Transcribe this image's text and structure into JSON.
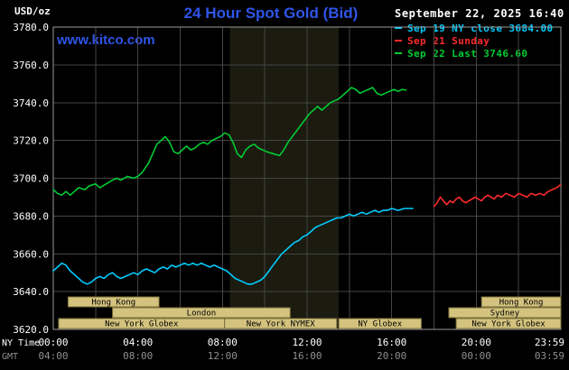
{
  "header": {
    "units": "USD/oz",
    "title": "24 Hour Spot Gold (Bid)",
    "datetime": "September 22, 2025 16:40",
    "watermark": "www.kitco.com"
  },
  "x_axis_names": {
    "ny": "NY Time",
    "gmt": "GMT"
  },
  "colors": {
    "background": "#000000",
    "text": "#ffffff",
    "gmt_text": "#8f8f8f",
    "title": "#2f55e8",
    "watermark": "#2f55e8",
    "grid": "#454545",
    "plot_border": "#9a9a9a",
    "band": "#1b1b10",
    "session_fill": "#d4c37e",
    "session_border": "#7a6f3a",
    "session_text": "#000000"
  },
  "chart_data": {
    "type": "line",
    "title": "24 Hour Spot Gold (Bid)",
    "ylabel": "USD/oz",
    "ylim": [
      3620,
      3780
    ],
    "xlim_hours": [
      0,
      24
    ],
    "grid": {
      "x_step_hours": 2,
      "y_step": 20,
      "on": true
    },
    "legend_position": "top-right",
    "band": {
      "name": "nymex-floor-hours",
      "start_hour": 8.35,
      "end_hour": 13.5
    },
    "y_axis": {
      "ticks": [
        {
          "value": 3780,
          "label": "3780.0"
        },
        {
          "value": 3760,
          "label": "3760.0"
        },
        {
          "value": 3740,
          "label": "3740.0"
        },
        {
          "value": 3720,
          "label": "3720.0"
        },
        {
          "value": 3700,
          "label": "3700.0"
        },
        {
          "value": 3680,
          "label": "3680.0"
        },
        {
          "value": 3660,
          "label": "3660.0"
        },
        {
          "value": 3640,
          "label": "3640.0"
        },
        {
          "value": 3620,
          "label": "3620.0"
        }
      ]
    },
    "x_axis": {
      "hours": [
        0,
        4,
        8,
        12,
        16,
        20,
        24
      ],
      "ny_labels": [
        "00:00",
        "04:00",
        "08:00",
        "12:00",
        "16:00",
        "20:00",
        "23:59"
      ],
      "gmt_labels": [
        "04:00",
        "08:00",
        "12:00",
        "16:00",
        "20:00",
        "00:00",
        "03:59"
      ]
    },
    "series": [
      {
        "name": "sep19-ny-close",
        "legend": "Sep 19 NY close 3684.00",
        "close_value": 3684.0,
        "color": "#00ccff",
        "points": [
          [
            0,
            3651
          ],
          [
            0.2,
            3653
          ],
          [
            0.4,
            3655
          ],
          [
            0.6,
            3654
          ],
          [
            0.8,
            3651
          ],
          [
            1,
            3649
          ],
          [
            1.2,
            3647
          ],
          [
            1.4,
            3645
          ],
          [
            1.6,
            3644
          ],
          [
            1.8,
            3645
          ],
          [
            2,
            3647
          ],
          [
            2.2,
            3648
          ],
          [
            2.4,
            3647
          ],
          [
            2.6,
            3649
          ],
          [
            2.8,
            3650
          ],
          [
            3,
            3648
          ],
          [
            3.2,
            3647
          ],
          [
            3.4,
            3648
          ],
          [
            3.6,
            3649
          ],
          [
            3.8,
            3650
          ],
          [
            4,
            3649
          ],
          [
            4.2,
            3651
          ],
          [
            4.4,
            3652
          ],
          [
            4.6,
            3651
          ],
          [
            4.8,
            3650
          ],
          [
            5,
            3652
          ],
          [
            5.2,
            3653
          ],
          [
            5.4,
            3652
          ],
          [
            5.6,
            3654
          ],
          [
            5.8,
            3653
          ],
          [
            6,
            3654
          ],
          [
            6.2,
            3655
          ],
          [
            6.4,
            3654
          ],
          [
            6.6,
            3655
          ],
          [
            6.8,
            3654
          ],
          [
            7,
            3655
          ],
          [
            7.2,
            3654
          ],
          [
            7.4,
            3653
          ],
          [
            7.6,
            3654
          ],
          [
            7.8,
            3653
          ],
          [
            8,
            3652
          ],
          [
            8.2,
            3651
          ],
          [
            8.4,
            3649
          ],
          [
            8.6,
            3647
          ],
          [
            8.8,
            3646
          ],
          [
            9,
            3645
          ],
          [
            9.2,
            3644
          ],
          [
            9.4,
            3644
          ],
          [
            9.6,
            3645
          ],
          [
            9.8,
            3646
          ],
          [
            10,
            3648
          ],
          [
            10.2,
            3651
          ],
          [
            10.4,
            3654
          ],
          [
            10.6,
            3657
          ],
          [
            10.8,
            3660
          ],
          [
            11,
            3662
          ],
          [
            11.2,
            3664
          ],
          [
            11.4,
            3666
          ],
          [
            11.6,
            3667
          ],
          [
            11.8,
            3669
          ],
          [
            12,
            3670
          ],
          [
            12.2,
            3672
          ],
          [
            12.4,
            3674
          ],
          [
            12.6,
            3675
          ],
          [
            12.8,
            3676
          ],
          [
            13,
            3677
          ],
          [
            13.2,
            3678
          ],
          [
            13.4,
            3679
          ],
          [
            13.6,
            3679
          ],
          [
            13.8,
            3680
          ],
          [
            14,
            3681
          ],
          [
            14.2,
            3680
          ],
          [
            14.4,
            3681
          ],
          [
            14.6,
            3682
          ],
          [
            14.8,
            3681
          ],
          [
            15,
            3682
          ],
          [
            15.2,
            3683
          ],
          [
            15.4,
            3682
          ],
          [
            15.6,
            3683
          ],
          [
            15.8,
            3683
          ],
          [
            16,
            3684
          ],
          [
            16.3,
            3683
          ],
          [
            16.6,
            3684
          ],
          [
            17,
            3684
          ]
        ]
      },
      {
        "name": "sep21-sunday",
        "legend": "Sep 21 Sunday",
        "color": "#ff2b2b",
        "points": [
          [
            18,
            3685
          ],
          [
            18.15,
            3687
          ],
          [
            18.3,
            3690
          ],
          [
            18.45,
            3688
          ],
          [
            18.6,
            3686
          ],
          [
            18.75,
            3688
          ],
          [
            18.9,
            3687
          ],
          [
            19.05,
            3689
          ],
          [
            19.2,
            3690
          ],
          [
            19.35,
            3688
          ],
          [
            19.5,
            3687
          ],
          [
            19.65,
            3688
          ],
          [
            19.8,
            3689
          ],
          [
            19.95,
            3690
          ],
          [
            20.1,
            3689
          ],
          [
            20.25,
            3688
          ],
          [
            20.4,
            3690
          ],
          [
            20.55,
            3691
          ],
          [
            20.7,
            3690
          ],
          [
            20.85,
            3689
          ],
          [
            21,
            3691
          ],
          [
            21.2,
            3690
          ],
          [
            21.4,
            3692
          ],
          [
            21.6,
            3691
          ],
          [
            21.8,
            3690
          ],
          [
            22,
            3692
          ],
          [
            22.2,
            3691
          ],
          [
            22.4,
            3690
          ],
          [
            22.6,
            3692
          ],
          [
            22.8,
            3691
          ],
          [
            23,
            3692
          ],
          [
            23.2,
            3691
          ],
          [
            23.4,
            3693
          ],
          [
            23.6,
            3694
          ],
          [
            23.8,
            3695
          ],
          [
            23.98,
            3696.5
          ]
        ]
      },
      {
        "name": "sep22-last",
        "legend": "Sep 22 Last 3746.60",
        "last_value": 3746.6,
        "color": "#00cc33",
        "points": [
          [
            0,
            3694
          ],
          [
            0.2,
            3692
          ],
          [
            0.4,
            3691
          ],
          [
            0.6,
            3693
          ],
          [
            0.8,
            3691
          ],
          [
            1,
            3693
          ],
          [
            1.2,
            3695
          ],
          [
            1.5,
            3694
          ],
          [
            1.7,
            3696
          ],
          [
            2,
            3697
          ],
          [
            2.2,
            3695
          ],
          [
            2.5,
            3697
          ],
          [
            2.8,
            3699
          ],
          [
            3,
            3700
          ],
          [
            3.2,
            3699
          ],
          [
            3.5,
            3701
          ],
          [
            3.8,
            3700
          ],
          [
            4,
            3701
          ],
          [
            4.2,
            3703
          ],
          [
            4.5,
            3708
          ],
          [
            4.7,
            3713
          ],
          [
            4.9,
            3718
          ],
          [
            5.1,
            3720
          ],
          [
            5.3,
            3722
          ],
          [
            5.5,
            3719
          ],
          [
            5.7,
            3714
          ],
          [
            5.9,
            3713
          ],
          [
            6.1,
            3715
          ],
          [
            6.3,
            3717
          ],
          [
            6.5,
            3715
          ],
          [
            6.7,
            3716
          ],
          [
            6.9,
            3718
          ],
          [
            7.1,
            3719
          ],
          [
            7.3,
            3718
          ],
          [
            7.5,
            3720
          ],
          [
            7.7,
            3721
          ],
          [
            7.9,
            3722
          ],
          [
            8.1,
            3724
          ],
          [
            8.3,
            3723
          ],
          [
            8.5,
            3719
          ],
          [
            8.7,
            3713
          ],
          [
            8.9,
            3711
          ],
          [
            9.1,
            3715
          ],
          [
            9.3,
            3717
          ],
          [
            9.5,
            3718
          ],
          [
            9.7,
            3716
          ],
          [
            9.9,
            3715
          ],
          [
            10.1,
            3714
          ],
          [
            10.4,
            3713
          ],
          [
            10.7,
            3712
          ],
          [
            10.9,
            3715
          ],
          [
            11.1,
            3719
          ],
          [
            11.3,
            3722
          ],
          [
            11.5,
            3725
          ],
          [
            11.7,
            3728
          ],
          [
            11.9,
            3731
          ],
          [
            12.1,
            3734
          ],
          [
            12.3,
            3736
          ],
          [
            12.5,
            3738
          ],
          [
            12.7,
            3736
          ],
          [
            12.9,
            3738
          ],
          [
            13.1,
            3740
          ],
          [
            13.3,
            3741
          ],
          [
            13.5,
            3742
          ],
          [
            13.7,
            3744
          ],
          [
            13.9,
            3746
          ],
          [
            14.1,
            3748
          ],
          [
            14.3,
            3747
          ],
          [
            14.5,
            3745
          ],
          [
            14.7,
            3746
          ],
          [
            14.9,
            3747
          ],
          [
            15.1,
            3748
          ],
          [
            15.3,
            3745
          ],
          [
            15.5,
            3744
          ],
          [
            15.7,
            3745
          ],
          [
            15.9,
            3746
          ],
          [
            16.1,
            3747
          ],
          [
            16.3,
            3746
          ],
          [
            16.5,
            3747
          ],
          [
            16.67,
            3746.6
          ]
        ]
      }
    ],
    "sessions": [
      {
        "row": 0,
        "label": "Hong Kong",
        "start": 0.7,
        "end": 5.0
      },
      {
        "row": 0,
        "label": "Hong Kong",
        "start": 20.25,
        "end": 24
      },
      {
        "row": 1,
        "label": "London",
        "start": 2.8,
        "end": 11.2
      },
      {
        "row": 1,
        "label": "Sydney",
        "start": 18.7,
        "end": 24
      },
      {
        "row": 2,
        "label": "New York Globex",
        "start": 0.25,
        "end": 8.1
      },
      {
        "row": 2,
        "label": "New York NYMEX",
        "start": 8.1,
        "end": 13.4
      },
      {
        "row": 2,
        "label": "NY Globex",
        "start": 13.5,
        "end": 17.4
      },
      {
        "row": 2,
        "label": "New York Globex",
        "start": 19.05,
        "end": 24
      }
    ]
  }
}
